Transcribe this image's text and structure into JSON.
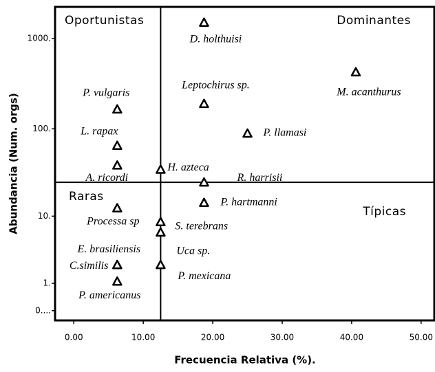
{
  "chart_data": {
    "type": "scatter",
    "xlabel": "Frecuencia  Relativa (%).",
    "ylabel": "Abundancia (Num. orgs)",
    "yscale": "log1p",
    "color": "#000000",
    "xlim": [
      -2.7,
      52
    ],
    "ylim": [
      -0.22,
      2230
    ],
    "xticks": [
      {
        "value": 0,
        "label": "0.00"
      },
      {
        "value": 10,
        "label": "10.00"
      },
      {
        "value": 20,
        "label": "20.00"
      },
      {
        "value": 30,
        "label": "30.00"
      },
      {
        "value": 40,
        "label": "40.00"
      },
      {
        "value": 50,
        "label": "50.00"
      }
    ],
    "yticks": [
      {
        "value": 0,
        "label": "0...."
      },
      {
        "value": 1,
        "label": "1."
      },
      {
        "value": 10,
        "label": "10."
      },
      {
        "value": 100,
        "label": "100."
      },
      {
        "value": 1000,
        "label": "1000."
      }
    ],
    "hline": 25,
    "vline": 12.5,
    "quadrants": [
      "Oportunistas",
      "Dominantes",
      "Raras",
      "Típicas"
    ],
    "labels": [
      "D. holthuisi",
      "M. acanthurus",
      "Leptochirus sp.",
      "P. vulgaris",
      "P. llamasi",
      "L. rapax",
      "A. ricordi",
      "H. azteca",
      "R. harrisii",
      "P. hartmanni",
      "Processa sp",
      "S. terebrans",
      "Uca sp.",
      "C.similis",
      "P. mexicana",
      "P. americanus",
      "E. brasiliensis"
    ],
    "x": [
      18.75,
      40.6,
      18.75,
      6.25,
      25,
      6.25,
      6.25,
      12.5,
      18.75,
      18.75,
      6.25,
      12.5,
      12.5,
      6.25,
      12.5,
      6.25,
      6.25
    ],
    "values": [
      1500,
      425,
      190,
      165,
      89,
      65,
      39,
      35,
      25,
      14.5,
      12.5,
      8.5,
      6.3,
      2.2,
      2.2,
      1.1,
      2.2
    ]
  }
}
